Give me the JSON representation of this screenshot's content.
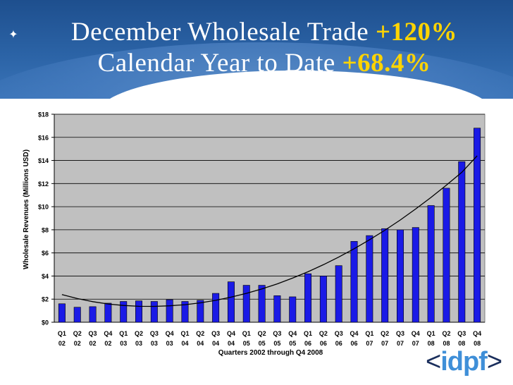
{
  "header": {
    "line1_text": "December Wholesale Trade",
    "line1_value": "+120%",
    "line2_text": "Calendar Year to Date",
    "line2_value": "+68.4%"
  },
  "logo": {
    "left": "<",
    "text": "idpf",
    "right": ">"
  },
  "colors": {
    "bar": "#1a1ae6",
    "trend": "#000000",
    "plot_bg": "#c0c0c0",
    "highlight": "#ffd400"
  },
  "chart_data": {
    "type": "bar",
    "xlabel": "Quarters 2002 through Q4 2008",
    "ylabel": "Wholesale Revenues (Millions USD)",
    "ylim": [
      0,
      18
    ],
    "yticks": [
      0,
      2,
      4,
      6,
      8,
      10,
      12,
      14,
      16,
      18
    ],
    "ytick_labels": [
      "$0",
      "$2",
      "$4",
      "$6",
      "$8",
      "$10",
      "$12",
      "$14",
      "$16",
      "$18"
    ],
    "grid": true,
    "categories": [
      [
        "Q1",
        "02"
      ],
      [
        "Q2",
        "02"
      ],
      [
        "Q3",
        "02"
      ],
      [
        "Q4",
        "02"
      ],
      [
        "Q1",
        "03"
      ],
      [
        "Q2",
        "03"
      ],
      [
        "Q3",
        "03"
      ],
      [
        "Q4",
        "03"
      ],
      [
        "Q1",
        "04"
      ],
      [
        "Q2",
        "04"
      ],
      [
        "Q3",
        "04"
      ],
      [
        "Q4",
        "04"
      ],
      [
        "Q1",
        "05"
      ],
      [
        "Q2",
        "05"
      ],
      [
        "Q3",
        "05"
      ],
      [
        "Q4",
        "05"
      ],
      [
        "Q1",
        "06"
      ],
      [
        "Q2",
        "06"
      ],
      [
        "Q3",
        "06"
      ],
      [
        "Q4",
        "06"
      ],
      [
        "Q1",
        "07"
      ],
      [
        "Q2",
        "07"
      ],
      [
        "Q3",
        "07"
      ],
      [
        "Q4",
        "07"
      ],
      [
        "Q1",
        "08"
      ],
      [
        "Q2",
        "08"
      ],
      [
        "Q3",
        "08"
      ],
      [
        "Q4",
        "08"
      ]
    ],
    "values": [
      1.6,
      1.3,
      1.35,
      1.65,
      1.8,
      1.85,
      1.8,
      1.95,
      1.8,
      1.9,
      2.5,
      3.5,
      3.2,
      3.2,
      2.3,
      2.2,
      4.2,
      4.0,
      4.9,
      7.0,
      7.5,
      8.1,
      8.0,
      8.2,
      10.1,
      11.6,
      13.9,
      16.8
    ],
    "trendline": {
      "type": "polynomial",
      "values": [
        2.4,
        2.05,
        1.78,
        1.58,
        1.45,
        1.38,
        1.37,
        1.42,
        1.52,
        1.68,
        1.9,
        2.17,
        2.5,
        2.88,
        3.32,
        3.82,
        4.37,
        4.98,
        5.64,
        6.36,
        7.13,
        7.96,
        8.85,
        9.8,
        10.8,
        11.86,
        12.97,
        14.4
      ]
    }
  }
}
